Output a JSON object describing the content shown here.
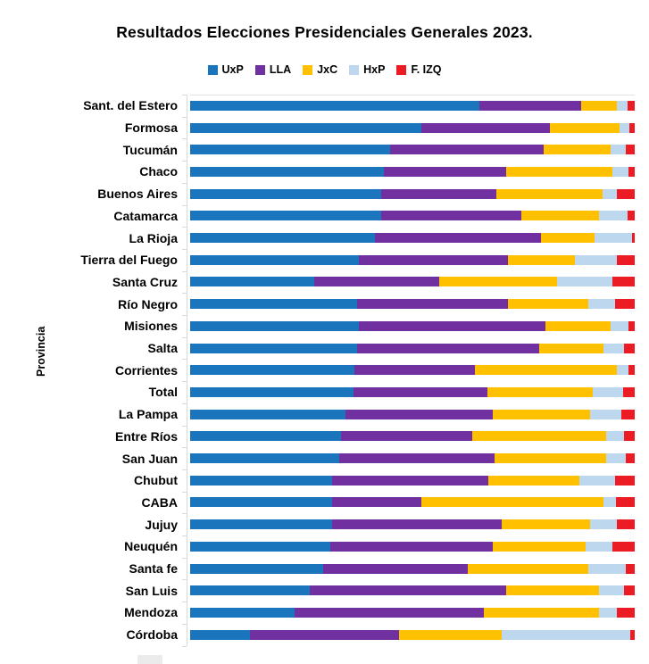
{
  "title": "Resultados Elecciones Presidenciales Generales 2023.",
  "y_axis_title": "Provincia",
  "colors": {
    "uxp": "#1B75BC",
    "lla": "#7030A0",
    "jxc": "#FFC000",
    "hxp": "#BDD7EE",
    "fizq": "#EC1C24",
    "axis": "#D9D9D9",
    "text": "#000000",
    "background": "#FFFFFF"
  },
  "chart_data": {
    "type": "bar",
    "stacked": true,
    "orientation": "horizontal",
    "unit": "percent",
    "xlim": [
      0,
      100
    ],
    "grid": false,
    "legend_position": "top",
    "title": "Resultados Elecciones Presidenciales Generales 2023.",
    "ylabel": "Provincia",
    "xlabel": "",
    "series_names": [
      "UxP",
      "LLA",
      "JxC",
      "HxP",
      "F. IZQ"
    ],
    "series_slugs": [
      "uxp",
      "lla",
      "jxc",
      "hxp",
      "fizq"
    ],
    "series_colors": [
      "#1B75BC",
      "#7030A0",
      "#FFC000",
      "#BDD7EE",
      "#EC1C24"
    ],
    "categories": [
      "Sant. del Estero",
      "Formosa",
      "Tucumán",
      "Chaco",
      "Buenos Aires",
      "Catamarca",
      "La Rioja",
      "Tierra del Fuego",
      "Santa Cruz",
      "Río Negro",
      "Misiones",
      "Salta",
      "Corrientes",
      "Total",
      "La Pampa",
      "Entre Ríos",
      "San Juan",
      "Chubut",
      "CABA",
      "Jujuy",
      "Neuquén",
      "Santa fe",
      "San Luis",
      "Mendoza",
      "Córdoba"
    ],
    "values": [
      [
        65.0,
        23.0,
        8.0,
        2.5,
        1.5
      ],
      [
        52.0,
        29.0,
        15.5,
        2.3,
        1.2
      ],
      [
        45.0,
        34.5,
        15.0,
        3.5,
        2.0
      ],
      [
        43.5,
        27.5,
        24.0,
        3.5,
        1.5
      ],
      [
        43.0,
        25.8,
        24.0,
        3.2,
        4.0
      ],
      [
        43.0,
        31.5,
        17.5,
        6.5,
        1.5
      ],
      [
        41.5,
        37.5,
        12.0,
        8.5,
        0.5
      ],
      [
        38.0,
        33.5,
        15.0,
        9.5,
        4.0
      ],
      [
        28.0,
        28.0,
        26.5,
        12.5,
        5.0
      ],
      [
        37.5,
        34.0,
        18.0,
        6.0,
        4.5
      ],
      [
        38.0,
        42.0,
        14.5,
        4.0,
        1.5
      ],
      [
        37.5,
        41.0,
        14.5,
        4.5,
        2.5
      ],
      [
        37.0,
        27.0,
        32.0,
        2.6,
        1.4
      ],
      [
        36.8,
        30.0,
        23.8,
        6.7,
        2.7
      ],
      [
        35.0,
        33.0,
        22.0,
        7.0,
        3.0
      ],
      [
        34.0,
        29.5,
        30.0,
        4.0,
        2.5
      ],
      [
        33.5,
        35.0,
        25.0,
        4.5,
        2.0
      ],
      [
        32.0,
        35.0,
        20.5,
        8.0,
        4.5
      ],
      [
        32.0,
        20.0,
        41.0,
        2.8,
        4.2
      ],
      [
        32.0,
        38.0,
        20.0,
        6.0,
        4.0
      ],
      [
        31.5,
        36.5,
        21.0,
        6.0,
        5.0
      ],
      [
        30.0,
        32.5,
        27.0,
        8.5,
        2.0
      ],
      [
        27.0,
        44.0,
        21.0,
        5.5,
        2.5
      ],
      [
        23.5,
        42.5,
        26.0,
        4.0,
        4.0
      ],
      [
        13.5,
        33.5,
        23.0,
        29.0,
        1.0
      ]
    ]
  }
}
